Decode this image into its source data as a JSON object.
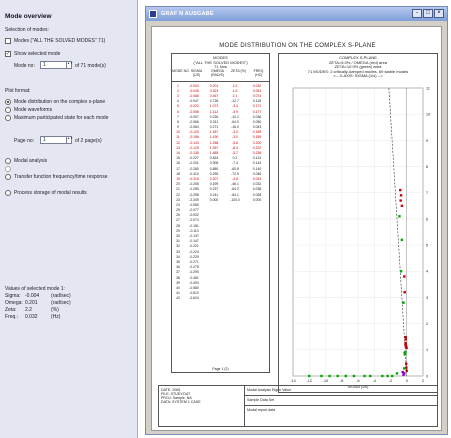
{
  "left_panel": {
    "title": "Mode overview",
    "selection_heading": "Selection of modes:",
    "modes_all_label": "Modes (\"ALL THE SOLVED MODES\" 71)",
    "show_selected_label": "Show selected mode",
    "mode_no_label": "Mode no:",
    "mode_no_value": "1",
    "mode_total": "of  71   mode(s)",
    "plot_format_heading": "Plot format:",
    "plot_options": [
      "Mode distribution on the complex s-plane",
      "Mode waveforms",
      "Maximum participated state for each mode"
    ],
    "page_no_label": "Page no:",
    "page_no_value": "1",
    "page_total": "of  2   page(s)",
    "modal_analysis_label": "Modal analysis",
    "greyed_option_label": "",
    "transfer_label": "Transfer function frequency/time response",
    "process_label": "Process storage of modal results",
    "values_heading": "Values of selected mode 1:",
    "values": [
      {
        "k": "Sigma:",
        "v": "-0.004",
        "u": "(rad/sec)"
      },
      {
        "k": "Omega:",
        "v": "0.201",
        "u": "(rad/sec)"
      },
      {
        "k": "Zeta:",
        "v": "2.2",
        "u": "(%)"
      },
      {
        "k": "Freq.:",
        "v": "0.032",
        "u": "(Hz)"
      }
    ]
  },
  "window": {
    "title": "GRAF N AUSGABE",
    "btn_min": "-",
    "btn_max": "□",
    "btn_close": "×",
    "doc_title": "MODE DISTRIBUTION ON THE COMPLEX S-PLANE",
    "table_header": [
      "MODES",
      "(\"ALL THE SOLVED MODES\")",
      "71 Nos"
    ],
    "table_cols": [
      "MODE NO",
      "SIGMA (1/S)",
      "OMEGA (RAD/S)",
      "ZETA (%)",
      "FREQ (HZ)"
    ],
    "rows": [
      {
        "n": "1",
        "a": "-0.004",
        "b": "0.201",
        "c": "2.2",
        "d": "0.032",
        "red": true
      },
      {
        "n": "2",
        "a": "-0.045",
        "b": "0.323",
        "c": "1.6",
        "d": "0.051",
        "red": true
      },
      {
        "n": "3",
        "a": "-0.068",
        "b": "0.467",
        "c": "2.1",
        "d": "0.074",
        "red": true
      },
      {
        "n": "4",
        "a": "-0.047",
        "b": "0.728",
        "c": "-12.7",
        "d": "0.116",
        "red": false
      },
      {
        "n": "5",
        "a": "-0.022",
        "b": "1.073",
        "c": "-3.4",
        "d": "0.171",
        "red": true
      },
      {
        "n": "6",
        "a": "-0.058",
        "b": "1.112",
        "c": "-5.9",
        "d": "0.177",
        "red": true
      },
      {
        "n": "7",
        "a": "-0.007",
        "b": "0.226",
        "c": "-10.2",
        "d": "0.036",
        "red": false
      },
      {
        "n": "8",
        "a": "-0.066",
        "b": "0.311",
        "c": "-64.0",
        "d": "0.050",
        "red": false
      },
      {
        "n": "9",
        "a": "-0.084",
        "b": "0.271",
        "c": "-16.0",
        "d": "0.043",
        "red": false
      },
      {
        "n": "10",
        "a": "-0.120",
        "b": "1.187",
        "c": "-3.0",
        "d": "0.189",
        "red": true
      },
      {
        "n": "11",
        "a": "-0.156",
        "b": "1.190",
        "c": "-3.0",
        "d": "0.189",
        "red": true
      },
      {
        "n": "12",
        "a": "-0.143",
        "b": "1.258",
        "c": "-5.6",
        "d": "0.200",
        "red": true
      },
      {
        "n": "13",
        "a": "-0.125",
        "b": "1.397",
        "c": "-8.4",
        "d": "0.222",
        "red": true
      },
      {
        "n": "14",
        "a": "-0.135",
        "b": "1.485",
        "c": "-3.7",
        "d": "0.236",
        "red": true
      },
      {
        "n": "15",
        "a": "-0.227",
        "b": "0.824",
        "c": "0.2",
        "d": "0.131",
        "red": false
      },
      {
        "n": "16",
        "a": "-0.201",
        "b": "0.906",
        "c": "-7.4",
        "d": "0.144",
        "red": false
      },
      {
        "n": "17",
        "a": "-0.265",
        "b": "0.880",
        "c": "-60.8",
        "d": "0.140",
        "red": false
      },
      {
        "n": "18",
        "a": "-0.310",
        "b": "0.290",
        "c": "-72.9",
        "d": "0.046",
        "red": false
      },
      {
        "n": "19",
        "a": "-0.316",
        "b": "0.207",
        "c": "-4.8",
        "d": "0.033",
        "red": true
      },
      {
        "n": "20",
        "a": "-0.255",
        "b": "0.199",
        "c": "-46.1",
        "d": "0.032",
        "red": false
      },
      {
        "n": "21",
        "a": "-0.285",
        "b": "0.237",
        "c": "-64.2",
        "d": "0.038",
        "red": false
      },
      {
        "n": "22",
        "a": "-0.298",
        "b": "0.241",
        "c": "-64.1",
        "d": "0.038",
        "red": false
      },
      {
        "n": "23",
        "a": "-2.349",
        "b": "0.000",
        "c": "-100.0",
        "d": "0.000",
        "red": false
      },
      {
        "n": "24",
        "a": "-0.080",
        "b": "",
        "c": "",
        "d": "",
        "red": false
      },
      {
        "n": "25",
        "a": "-0.077",
        "b": "",
        "c": "",
        "d": "",
        "red": false
      },
      {
        "n": "26",
        "a": "-0.002",
        "b": "",
        "c": "",
        "d": "",
        "red": false
      },
      {
        "n": "27",
        "a": "-0.074",
        "b": "",
        "c": "",
        "d": "",
        "red": false
      },
      {
        "n": "28",
        "a": "-0.151",
        "b": "",
        "c": "",
        "d": "",
        "red": false
      },
      {
        "n": "29",
        "a": "-0.110",
        "b": "",
        "c": "",
        "d": "",
        "red": false
      },
      {
        "n": "30",
        "a": "-0.137",
        "b": "",
        "c": "",
        "d": "",
        "red": false
      },
      {
        "n": "31",
        "a": "-0.147",
        "b": "",
        "c": "",
        "d": "",
        "red": false
      },
      {
        "n": "32",
        "a": "-0.221",
        "b": "",
        "c": "",
        "d": "",
        "red": false
      },
      {
        "n": "33",
        "a": "-0.224",
        "b": "",
        "c": "",
        "d": "",
        "red": false
      },
      {
        "n": "34",
        "a": "-0.229",
        "b": "",
        "c": "",
        "d": "",
        "red": false
      },
      {
        "n": "35",
        "a": "-0.271",
        "b": "",
        "c": "",
        "d": "",
        "red": false
      },
      {
        "n": "36",
        "a": "-0.275",
        "b": "",
        "c": "",
        "d": "",
        "red": false
      },
      {
        "n": "37",
        "a": "-0.290",
        "b": "",
        "c": "",
        "d": "",
        "red": false
      },
      {
        "n": "38",
        "a": "-0.461",
        "b": "",
        "c": "",
        "d": "",
        "red": false
      },
      {
        "n": "39",
        "a": "-0.493",
        "b": "",
        "c": "",
        "d": "",
        "red": false
      },
      {
        "n": "40",
        "a": "-0.580",
        "b": "",
        "c": "",
        "d": "",
        "red": false
      },
      {
        "n": "41",
        "a": "-0.610",
        "b": "",
        "c": "",
        "d": "",
        "red": false
      },
      {
        "n": "42",
        "a": "-0.624",
        "b": "",
        "c": "",
        "d": "",
        "red": false
      }
    ],
    "table_footer": "Page 1 (2)",
    "plot_header": [
      "COMPLEX S-PLANE",
      "ZETA=5.0% / OMEGA (red) area",
      "ZETA=10.0% (green) area",
      "71 MODES: 2 critically-damped modes, 69 stable modes",
      "<-- X-AXIS: SIGMA (1/s) -->"
    ],
    "title_block": {
      "left": [
        "DATE: 2005",
        "FILE: STUDY.DAT",
        "PROJ: Sample, NA",
        "DATA: SYSTEM 1 CASE"
      ],
      "right": [
        "Modal Analysis Eigen Value",
        "Sample Data Set",
        "Modal report data"
      ]
    }
  },
  "chart_data": {
    "type": "scatter",
    "title": "COMPLEX S-PLANE",
    "xlabel": "SIGMA (1/s)",
    "ylabel": "",
    "xlim": [
      -14,
      2
    ],
    "ylim": [
      0,
      11
    ],
    "xticks": [
      "-14",
      "-12",
      "-10",
      "-8",
      "-6",
      "-4",
      "-2",
      "0",
      "2"
    ],
    "yticks": [
      "0",
      "1",
      "2",
      "3",
      "4",
      "5",
      "6",
      "7",
      "8",
      "9",
      "10",
      "11"
    ],
    "series": [
      {
        "color": "#cc0000",
        "points": [
          [
            -0.004,
            0.201
          ],
          [
            -0.045,
            0.323
          ],
          [
            -0.068,
            0.467
          ],
          [
            -0.022,
            1.073
          ],
          [
            -0.058,
            1.112
          ],
          [
            -0.12,
            1.187
          ],
          [
            -0.156,
            1.19
          ],
          [
            -0.143,
            1.258
          ],
          [
            -0.125,
            1.397
          ],
          [
            -0.135,
            1.485
          ],
          [
            -0.8,
            7.1
          ],
          [
            -0.7,
            6.9
          ],
          [
            -0.6,
            6.5
          ],
          [
            -0.75,
            6.7
          ],
          [
            -0.3,
            3.8
          ],
          [
            -0.25,
            3.2
          ]
        ]
      },
      {
        "color": "#00aa00",
        "points": [
          [
            -0.9,
            6.1
          ],
          [
            -0.6,
            5.2
          ],
          [
            -0.7,
            4.0
          ],
          [
            -0.4,
            2.8
          ],
          [
            -0.227,
            0.824
          ],
          [
            -0.201,
            0.906
          ],
          [
            -0.265,
            0.88
          ],
          [
            -0.31,
            0.29
          ],
          [
            -2.349,
            0.0
          ],
          [
            -4.5,
            0.0
          ],
          [
            -5.2,
            0.0
          ],
          [
            -6.5,
            0.0
          ],
          [
            -7.5,
            0.0
          ],
          [
            -8.5,
            0.0
          ],
          [
            -9.5,
            0.0
          ],
          [
            -10.5,
            0.0
          ],
          [
            -12.0,
            0.0
          ],
          [
            -1.2,
            0.1
          ],
          [
            -1.8,
            0.0
          ],
          [
            -3.0,
            0.0
          ]
        ]
      },
      {
        "color": "#8800cc",
        "points": [
          [
            -0.4,
            0.05
          ],
          [
            -0.3,
            0.1
          ],
          [
            -0.5,
            0.15
          ]
        ]
      }
    ],
    "reference_line": {
      "color": "#333333",
      "dashed": true
    }
  }
}
